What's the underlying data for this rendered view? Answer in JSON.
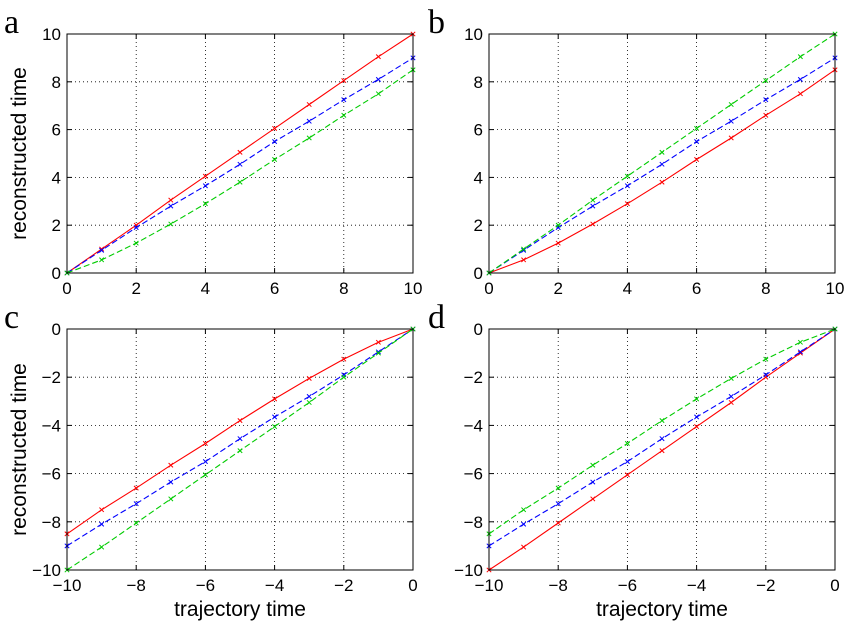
{
  "chart_data": [
    {
      "panel": "a",
      "type": "line",
      "xlabel": "",
      "ylabel": "reconstructed time",
      "xlim": [
        0,
        10
      ],
      "ylim": [
        0,
        10
      ],
      "xticks": [
        0,
        2,
        4,
        6,
        8,
        10
      ],
      "yticks": [
        0,
        2,
        4,
        6,
        8,
        10
      ],
      "grid": true,
      "x": [
        0,
        1,
        2,
        3,
        4,
        5,
        6,
        7,
        8,
        9,
        10
      ],
      "series": [
        {
          "color": "#ff0000",
          "style": "solid",
          "values": [
            0,
            1.0,
            2.0,
            3.05,
            4.05,
            5.05,
            6.05,
            7.05,
            8.05,
            9.05,
            10.0
          ]
        },
        {
          "color": "#0000ff",
          "style": "dashed",
          "values": [
            0,
            0.95,
            1.9,
            2.8,
            3.65,
            4.55,
            5.5,
            6.35,
            7.25,
            8.1,
            9.0
          ]
        },
        {
          "color": "#00cc00",
          "style": "dashed",
          "values": [
            0,
            0.55,
            1.25,
            2.05,
            2.9,
            3.8,
            4.75,
            5.65,
            6.6,
            7.5,
            8.5
          ]
        }
      ]
    },
    {
      "panel": "b",
      "type": "line",
      "xlabel": "",
      "ylabel": "",
      "xlim": [
        0,
        10
      ],
      "ylim": [
        0,
        10
      ],
      "xticks": [
        0,
        2,
        4,
        6,
        8,
        10
      ],
      "yticks": [
        0,
        2,
        4,
        6,
        8,
        10
      ],
      "grid": true,
      "x": [
        0,
        1,
        2,
        3,
        4,
        5,
        6,
        7,
        8,
        9,
        10
      ],
      "series": [
        {
          "color": "#ff0000",
          "style": "solid",
          "values": [
            0,
            0.55,
            1.25,
            2.05,
            2.9,
            3.8,
            4.75,
            5.65,
            6.6,
            7.5,
            8.5
          ]
        },
        {
          "color": "#0000ff",
          "style": "dashed",
          "values": [
            0,
            0.95,
            1.9,
            2.8,
            3.65,
            4.55,
            5.5,
            6.35,
            7.25,
            8.1,
            9.0
          ]
        },
        {
          "color": "#00cc00",
          "style": "dashed",
          "values": [
            0,
            1.0,
            2.0,
            3.05,
            4.05,
            5.05,
            6.05,
            7.05,
            8.05,
            9.05,
            10.0
          ]
        }
      ]
    },
    {
      "panel": "c",
      "type": "line",
      "xlabel": "trajectory time",
      "ylabel": "reconstructed time",
      "xlim": [
        -10,
        0
      ],
      "ylim": [
        -10,
        0
      ],
      "xticks": [
        -10,
        -8,
        -6,
        -4,
        -2,
        0
      ],
      "yticks": [
        -10,
        -8,
        -6,
        -4,
        -2,
        0
      ],
      "grid": true,
      "x": [
        -10,
        -9,
        -8,
        -7,
        -6,
        -5,
        -4,
        -3,
        -2,
        -1,
        0
      ],
      "series": [
        {
          "color": "#ff0000",
          "style": "solid",
          "values": [
            -8.5,
            -7.5,
            -6.6,
            -5.65,
            -4.75,
            -3.8,
            -2.9,
            -2.05,
            -1.25,
            -0.55,
            0
          ]
        },
        {
          "color": "#0000ff",
          "style": "dashed",
          "values": [
            -9.0,
            -8.1,
            -7.25,
            -6.35,
            -5.5,
            -4.55,
            -3.65,
            -2.8,
            -1.9,
            -0.95,
            0
          ]
        },
        {
          "color": "#00cc00",
          "style": "dashed",
          "values": [
            -10.0,
            -9.05,
            -8.05,
            -7.05,
            -6.05,
            -5.05,
            -4.05,
            -3.05,
            -2.0,
            -1.0,
            0
          ]
        }
      ]
    },
    {
      "panel": "d",
      "type": "line",
      "xlabel": "trajectory time",
      "ylabel": "",
      "xlim": [
        -10,
        0
      ],
      "ylim": [
        -10,
        0
      ],
      "xticks": [
        -10,
        -8,
        -6,
        -4,
        -2,
        0
      ],
      "yticks": [
        -10,
        -8,
        -6,
        -4,
        -2,
        0
      ],
      "grid": true,
      "x": [
        -10,
        -9,
        -8,
        -7,
        -6,
        -5,
        -4,
        -3,
        -2,
        -1,
        0
      ],
      "series": [
        {
          "color": "#ff0000",
          "style": "solid",
          "values": [
            -10.0,
            -9.05,
            -8.05,
            -7.05,
            -6.05,
            -5.05,
            -4.05,
            -3.05,
            -2.0,
            -1.0,
            0
          ]
        },
        {
          "color": "#0000ff",
          "style": "dashed",
          "values": [
            -9.0,
            -8.1,
            -7.25,
            -6.35,
            -5.5,
            -4.55,
            -3.65,
            -2.8,
            -1.9,
            -0.95,
            0
          ]
        },
        {
          "color": "#00cc00",
          "style": "dashed",
          "values": [
            -8.5,
            -7.5,
            -6.6,
            -5.65,
            -4.75,
            -3.8,
            -2.9,
            -2.05,
            -1.25,
            -0.55,
            0
          ]
        }
      ]
    }
  ]
}
